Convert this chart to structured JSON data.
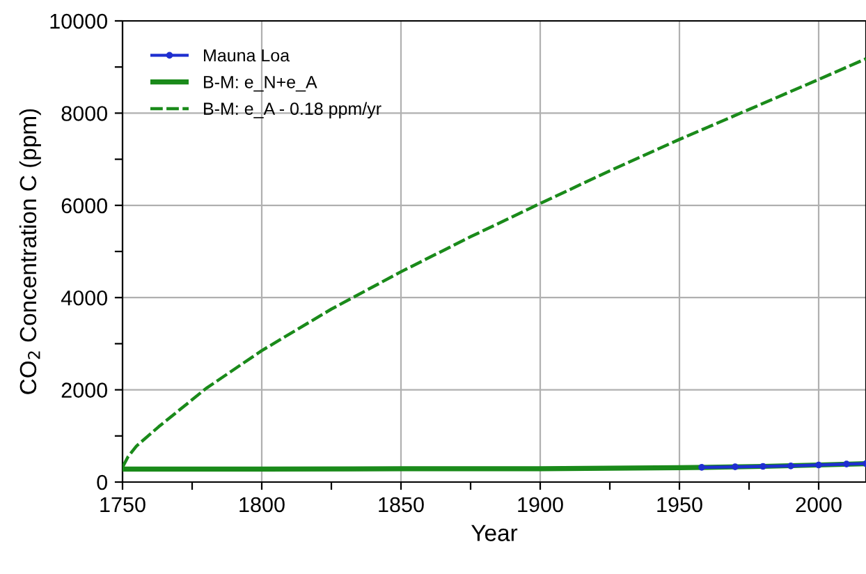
{
  "chart_data": {
    "type": "line",
    "xlabel": "Year",
    "ylabel": "CO$_{2}$ Concentration C (ppm)",
    "xlim": [
      1750,
      2017
    ],
    "ylim": [
      0,
      10000
    ],
    "xticks": [
      1750,
      {
        "value": 1775,
        "label": null
      },
      1800,
      {
        "value": 1825,
        "label": null
      },
      1850,
      {
        "value": 1875,
        "label": null
      },
      1900,
      {
        "value": 1925,
        "label": null
      },
      1950,
      {
        "value": 1975,
        "label": null
      },
      2000
    ],
    "yticks": [
      0,
      {
        "value": 1000,
        "label": null
      },
      2000,
      {
        "value": 3000,
        "label": null
      },
      4000,
      {
        "value": 5000,
        "label": null
      },
      6000,
      {
        "value": 7000,
        "label": null
      },
      8000,
      {
        "value": 9000,
        "label": null
      },
      10000
    ],
    "grid": true,
    "legend": "top left",
    "series": [
      {
        "name": "Mauna Loa",
        "color": "#1f2fd0",
        "marker": "circle",
        "line_style": "solid",
        "x": [
          1958,
          1970,
          1980,
          1990,
          2000,
          2010,
          2017
        ],
        "values": [
          320,
          330,
          340,
          350,
          370,
          390,
          400
        ]
      },
      {
        "name": "B-M: e_N+e_A",
        "color": "#1a8a1a",
        "marker": "none",
        "line_style": "solid",
        "x": [
          1750,
          1800,
          1850,
          1900,
          1950,
          1980,
          2000,
          2017
        ],
        "values": [
          280,
          280,
          290,
          290,
          310,
          340,
          370,
          400
        ]
      },
      {
        "name": "B-M: e_A - 0.18 ppm/yr",
        "color": "#1a8a1a",
        "marker": "none",
        "line_style": "dashed",
        "x": [
          1750,
          1752,
          1755,
          1763,
          1780,
          1800,
          1825,
          1850,
          1875,
          1900,
          1925,
          1950,
          1975,
          2000,
          2017
        ],
        "values": [
          320,
          550,
          780,
          1200,
          2030,
          2850,
          3750,
          4560,
          5320,
          6040,
          6750,
          7430,
          8080,
          8730,
          9180
        ]
      }
    ]
  }
}
